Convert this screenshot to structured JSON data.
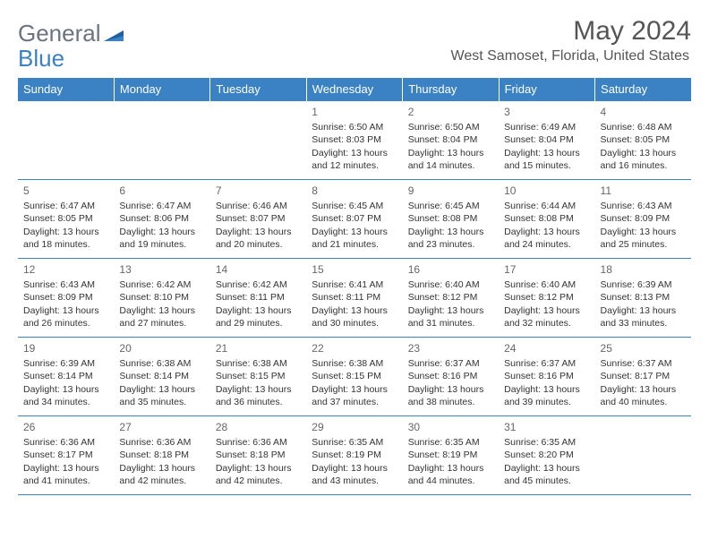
{
  "brand": {
    "part1": "General",
    "part2": "Blue"
  },
  "title": "May 2024",
  "location": "West Samoset, Florida, United States",
  "colors": {
    "header_bg": "#3b82c4",
    "header_text": "#ffffff",
    "row_border": "#3b82c4",
    "body_text": "#333333",
    "title_text": "#555555"
  },
  "weekdays": [
    "Sunday",
    "Monday",
    "Tuesday",
    "Wednesday",
    "Thursday",
    "Friday",
    "Saturday"
  ],
  "weeks": [
    [
      null,
      null,
      null,
      {
        "n": "1",
        "sunrise": "Sunrise: 6:50 AM",
        "sunset": "Sunset: 8:03 PM",
        "day": "Daylight: 13 hours and 12 minutes."
      },
      {
        "n": "2",
        "sunrise": "Sunrise: 6:50 AM",
        "sunset": "Sunset: 8:04 PM",
        "day": "Daylight: 13 hours and 14 minutes."
      },
      {
        "n": "3",
        "sunrise": "Sunrise: 6:49 AM",
        "sunset": "Sunset: 8:04 PM",
        "day": "Daylight: 13 hours and 15 minutes."
      },
      {
        "n": "4",
        "sunrise": "Sunrise: 6:48 AM",
        "sunset": "Sunset: 8:05 PM",
        "day": "Daylight: 13 hours and 16 minutes."
      }
    ],
    [
      {
        "n": "5",
        "sunrise": "Sunrise: 6:47 AM",
        "sunset": "Sunset: 8:05 PM",
        "day": "Daylight: 13 hours and 18 minutes."
      },
      {
        "n": "6",
        "sunrise": "Sunrise: 6:47 AM",
        "sunset": "Sunset: 8:06 PM",
        "day": "Daylight: 13 hours and 19 minutes."
      },
      {
        "n": "7",
        "sunrise": "Sunrise: 6:46 AM",
        "sunset": "Sunset: 8:07 PM",
        "day": "Daylight: 13 hours and 20 minutes."
      },
      {
        "n": "8",
        "sunrise": "Sunrise: 6:45 AM",
        "sunset": "Sunset: 8:07 PM",
        "day": "Daylight: 13 hours and 21 minutes."
      },
      {
        "n": "9",
        "sunrise": "Sunrise: 6:45 AM",
        "sunset": "Sunset: 8:08 PM",
        "day": "Daylight: 13 hours and 23 minutes."
      },
      {
        "n": "10",
        "sunrise": "Sunrise: 6:44 AM",
        "sunset": "Sunset: 8:08 PM",
        "day": "Daylight: 13 hours and 24 minutes."
      },
      {
        "n": "11",
        "sunrise": "Sunrise: 6:43 AM",
        "sunset": "Sunset: 8:09 PM",
        "day": "Daylight: 13 hours and 25 minutes."
      }
    ],
    [
      {
        "n": "12",
        "sunrise": "Sunrise: 6:43 AM",
        "sunset": "Sunset: 8:09 PM",
        "day": "Daylight: 13 hours and 26 minutes."
      },
      {
        "n": "13",
        "sunrise": "Sunrise: 6:42 AM",
        "sunset": "Sunset: 8:10 PM",
        "day": "Daylight: 13 hours and 27 minutes."
      },
      {
        "n": "14",
        "sunrise": "Sunrise: 6:42 AM",
        "sunset": "Sunset: 8:11 PM",
        "day": "Daylight: 13 hours and 29 minutes."
      },
      {
        "n": "15",
        "sunrise": "Sunrise: 6:41 AM",
        "sunset": "Sunset: 8:11 PM",
        "day": "Daylight: 13 hours and 30 minutes."
      },
      {
        "n": "16",
        "sunrise": "Sunrise: 6:40 AM",
        "sunset": "Sunset: 8:12 PM",
        "day": "Daylight: 13 hours and 31 minutes."
      },
      {
        "n": "17",
        "sunrise": "Sunrise: 6:40 AM",
        "sunset": "Sunset: 8:12 PM",
        "day": "Daylight: 13 hours and 32 minutes."
      },
      {
        "n": "18",
        "sunrise": "Sunrise: 6:39 AM",
        "sunset": "Sunset: 8:13 PM",
        "day": "Daylight: 13 hours and 33 minutes."
      }
    ],
    [
      {
        "n": "19",
        "sunrise": "Sunrise: 6:39 AM",
        "sunset": "Sunset: 8:14 PM",
        "day": "Daylight: 13 hours and 34 minutes."
      },
      {
        "n": "20",
        "sunrise": "Sunrise: 6:38 AM",
        "sunset": "Sunset: 8:14 PM",
        "day": "Daylight: 13 hours and 35 minutes."
      },
      {
        "n": "21",
        "sunrise": "Sunrise: 6:38 AM",
        "sunset": "Sunset: 8:15 PM",
        "day": "Daylight: 13 hours and 36 minutes."
      },
      {
        "n": "22",
        "sunrise": "Sunrise: 6:38 AM",
        "sunset": "Sunset: 8:15 PM",
        "day": "Daylight: 13 hours and 37 minutes."
      },
      {
        "n": "23",
        "sunrise": "Sunrise: 6:37 AM",
        "sunset": "Sunset: 8:16 PM",
        "day": "Daylight: 13 hours and 38 minutes."
      },
      {
        "n": "24",
        "sunrise": "Sunrise: 6:37 AM",
        "sunset": "Sunset: 8:16 PM",
        "day": "Daylight: 13 hours and 39 minutes."
      },
      {
        "n": "25",
        "sunrise": "Sunrise: 6:37 AM",
        "sunset": "Sunset: 8:17 PM",
        "day": "Daylight: 13 hours and 40 minutes."
      }
    ],
    [
      {
        "n": "26",
        "sunrise": "Sunrise: 6:36 AM",
        "sunset": "Sunset: 8:17 PM",
        "day": "Daylight: 13 hours and 41 minutes."
      },
      {
        "n": "27",
        "sunrise": "Sunrise: 6:36 AM",
        "sunset": "Sunset: 8:18 PM",
        "day": "Daylight: 13 hours and 42 minutes."
      },
      {
        "n": "28",
        "sunrise": "Sunrise: 6:36 AM",
        "sunset": "Sunset: 8:18 PM",
        "day": "Daylight: 13 hours and 42 minutes."
      },
      {
        "n": "29",
        "sunrise": "Sunrise: 6:35 AM",
        "sunset": "Sunset: 8:19 PM",
        "day": "Daylight: 13 hours and 43 minutes."
      },
      {
        "n": "30",
        "sunrise": "Sunrise: 6:35 AM",
        "sunset": "Sunset: 8:19 PM",
        "day": "Daylight: 13 hours and 44 minutes."
      },
      {
        "n": "31",
        "sunrise": "Sunrise: 6:35 AM",
        "sunset": "Sunset: 8:20 PM",
        "day": "Daylight: 13 hours and 45 minutes."
      },
      null
    ]
  ]
}
